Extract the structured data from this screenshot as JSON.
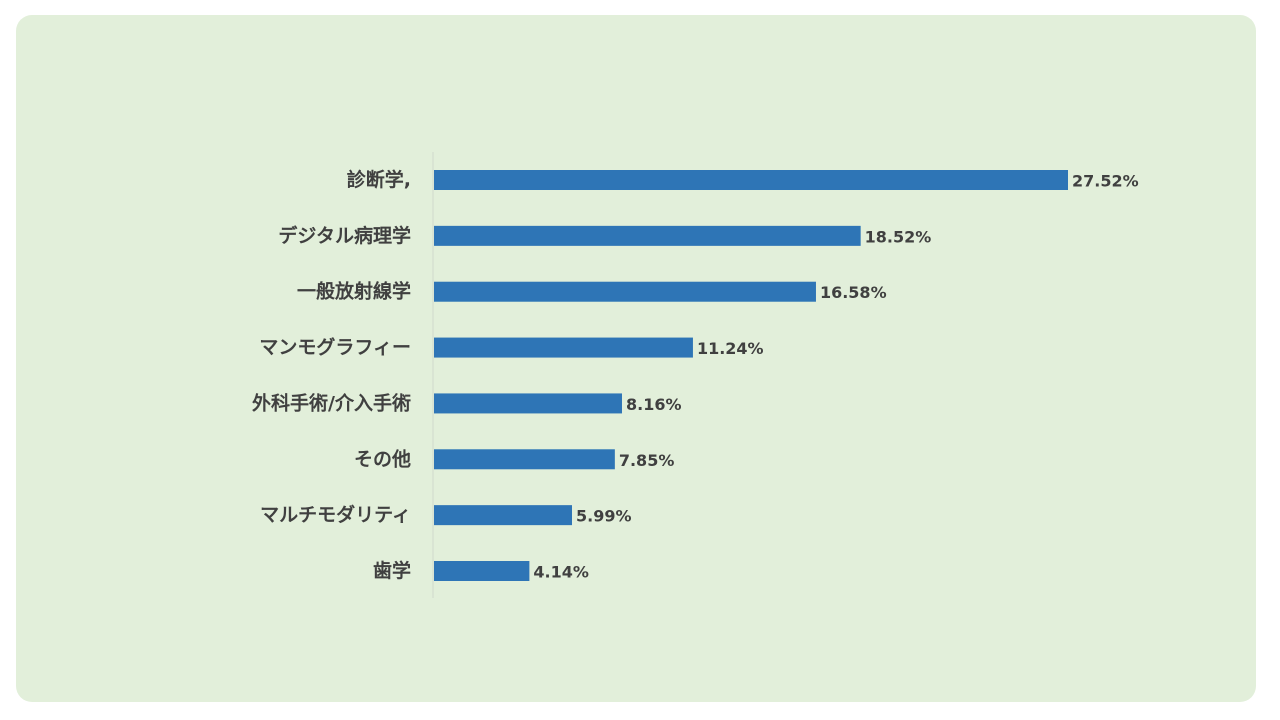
{
  "colors": {
    "panel_background": "#e2efda",
    "bar": "#2e75b6",
    "text": "#404040",
    "axis": "#d0d8cc"
  },
  "chart_data": {
    "type": "bar",
    "orientation": "horizontal",
    "categories": [
      "診断学,",
      "デジタル病理学",
      "一般放射線学",
      "マンモグラフィー",
      "外科手術/介入手術",
      "その他",
      "マルチモダリティ",
      "歯学"
    ],
    "values": [
      27.52,
      18.52,
      16.58,
      11.24,
      8.16,
      7.85,
      5.99,
      4.14
    ],
    "value_labels": [
      "27.52%",
      "18.52%",
      "16.58%",
      "11.24%",
      "8.16%",
      "7.85%",
      "5.99%",
      "4.14%"
    ],
    "unit": "%",
    "title": "",
    "xlabel": "",
    "ylabel": "",
    "xlim": [
      0,
      30
    ],
    "grid": false,
    "legend": "none"
  }
}
